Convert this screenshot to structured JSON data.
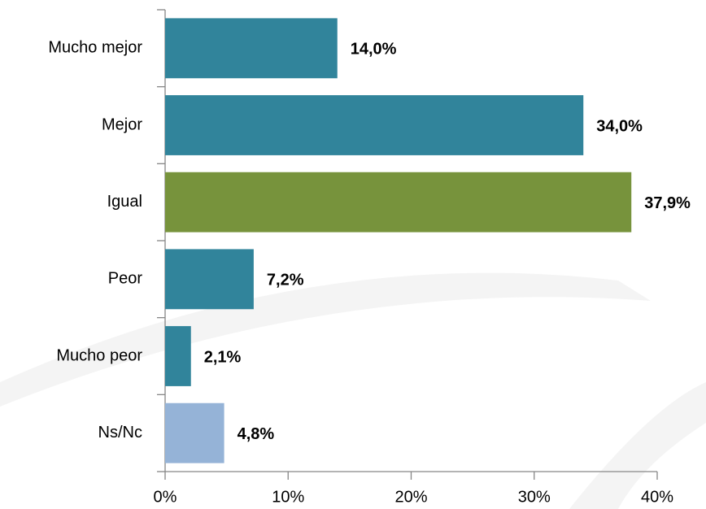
{
  "chart_data": {
    "type": "bar",
    "orientation": "horizontal",
    "categories": [
      "Mucho mejor",
      "Mejor",
      "Igual",
      "Peor",
      "Mucho peor",
      "Ns/Nc"
    ],
    "values": [
      14.0,
      34.0,
      37.9,
      7.2,
      2.1,
      4.8
    ],
    "value_labels": [
      "14,0%",
      "34,0%",
      "37,9%",
      "7,2%",
      "2,1%",
      "4,8%"
    ],
    "colors": [
      "#31849b",
      "#31849b",
      "#77933c",
      "#31849b",
      "#31849b",
      "#95b3d7"
    ],
    "xlim": [
      0,
      40
    ],
    "xticks": [
      {
        "value": 0,
        "label": "0%"
      },
      {
        "value": 10,
        "label": "10%"
      },
      {
        "value": 20,
        "label": "20%"
      },
      {
        "value": 30,
        "label": "30%"
      },
      {
        "value": 40,
        "label": "40%"
      }
    ],
    "grid": false
  }
}
